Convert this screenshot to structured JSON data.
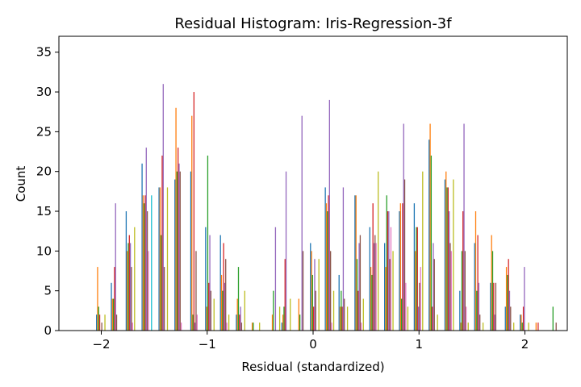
{
  "chart_data": {
    "type": "bar",
    "title": "Residual Histogram: Iris-Regression-3f",
    "xlabel": "Residual (standardized)",
    "ylabel": "Count",
    "xlim": [
      -2.4,
      2.4
    ],
    "ylim": [
      0,
      37
    ],
    "x_ticks": [
      -2,
      -1,
      0,
      1,
      2
    ],
    "x_tick_labels": [
      "−2",
      "−1",
      "0",
      "1",
      "2"
    ],
    "y_ticks": [
      0,
      5,
      10,
      15,
      20,
      25,
      30,
      35
    ],
    "grid": false,
    "legend": "none",
    "bins_x": [
      -2.0,
      -1.86,
      -1.72,
      -1.57,
      -1.41,
      -1.26,
      -1.11,
      -0.97,
      -0.83,
      -0.68,
      -0.54,
      -0.35,
      -0.25,
      -0.1,
      0.02,
      0.16,
      0.29,
      0.44,
      0.58,
      0.72,
      0.86,
      1.0,
      1.14,
      1.29,
      1.43,
      1.57,
      1.72,
      1.86,
      2.0,
      2.14,
      2.29
    ],
    "series": [
      {
        "color": "#1f77b4",
        "values": [
          2,
          6,
          15,
          21,
          18,
          19,
          20,
          13,
          12,
          2,
          0,
          0,
          1,
          0,
          11,
          18,
          7,
          17,
          13,
          11,
          15,
          16,
          24,
          19,
          5,
          11,
          6,
          3,
          2,
          0,
          0
        ]
      },
      {
        "color": "#ff7f0e",
        "values": [
          8,
          4,
          10,
          17,
          18,
          28,
          27,
          3,
          7,
          4,
          1,
          2,
          2,
          4,
          10,
          16,
          3,
          17,
          8,
          8,
          16,
          10,
          26,
          20,
          1,
          15,
          12,
          8,
          2,
          1,
          0
        ]
      },
      {
        "color": "#2ca02c",
        "values": [
          3,
          4,
          11,
          16,
          12,
          20,
          2,
          22,
          5,
          8,
          1,
          5,
          3,
          2,
          7,
          15,
          5,
          9,
          7,
          17,
          4,
          13,
          22,
          18,
          10,
          5,
          10,
          7,
          1,
          0,
          3
        ]
      },
      {
        "color": "#d62728",
        "values": [
          2,
          8,
          12,
          17,
          22,
          23,
          30,
          6,
          11,
          2,
          0,
          0,
          9,
          0,
          3,
          17,
          3,
          5,
          16,
          15,
          16,
          13,
          3,
          18,
          15,
          12,
          6,
          9,
          3,
          1,
          0
        ]
      },
      {
        "color": "#9467bd",
        "values": [
          0,
          16,
          11,
          23,
          31,
          21,
          1,
          12,
          6,
          3,
          0,
          13,
          20,
          27,
          9,
          29,
          18,
          11,
          11,
          15,
          26,
          3,
          11,
          15,
          26,
          6,
          2,
          5,
          8,
          0,
          0
        ]
      },
      {
        "color": "#8c564b",
        "values": [
          1,
          2,
          8,
          15,
          8,
          20,
          10,
          5,
          9,
          1,
          0,
          0,
          0,
          10,
          5,
          10,
          4,
          12,
          12,
          9,
          19,
          6,
          9,
          11,
          10,
          2,
          6,
          3,
          0,
          0,
          1
        ]
      },
      {
        "color": "#e377c2",
        "values": [
          0,
          0,
          1,
          10,
          0,
          1,
          2,
          0,
          1,
          0,
          0,
          0,
          0,
          0,
          0,
          1,
          0,
          1,
          11,
          13,
          6,
          8,
          0,
          10,
          3,
          0,
          0,
          0,
          0,
          0,
          0
        ]
      },
      {
        "color": "#7f7f7f",
        "values": [
          0,
          0,
          0,
          0,
          0,
          0,
          0,
          0,
          0,
          0,
          0,
          0,
          0,
          0,
          0,
          0,
          0,
          0,
          0,
          0,
          0,
          0,
          0,
          0,
          0,
          0,
          0,
          0,
          0,
          0,
          0
        ]
      },
      {
        "color": "#bcbd22",
        "values": [
          2,
          0,
          13,
          0,
          18,
          0,
          0,
          4,
          2,
          5,
          1,
          3,
          4,
          0,
          9,
          5,
          3,
          4,
          20,
          10,
          3,
          20,
          2,
          19,
          1,
          1,
          0,
          1,
          1,
          0,
          0
        ]
      },
      {
        "color": "#17becf",
        "values": [
          0,
          0,
          0,
          17,
          0,
          0,
          0,
          0,
          0,
          0,
          0,
          0,
          0,
          0,
          0,
          0,
          0,
          0,
          0,
          0,
          0,
          0,
          0,
          0,
          0,
          0,
          0,
          0,
          0,
          0,
          0
        ]
      }
    ]
  }
}
